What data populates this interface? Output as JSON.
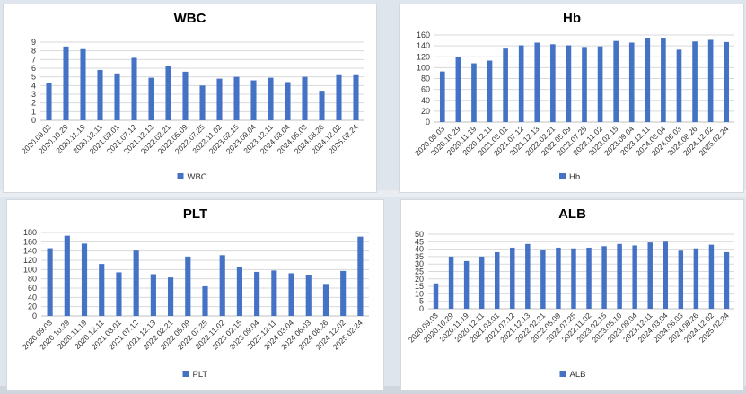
{
  "colors": {
    "bar": "#4472c4"
  },
  "chart_data": [
    {
      "type": "bar",
      "title": "WBC",
      "legend": "WBC",
      "legend_position": "bottom",
      "ylim": [
        0,
        9
      ],
      "ystep": 1,
      "categories": [
        "2020.09.03",
        "2020.10.29",
        "2020.11.19",
        "2020.12.11",
        "2021.03.01",
        "2021.07.12",
        "2021.12.13",
        "2022.02.21",
        "2022.05.09",
        "2022.07.25",
        "2022.11.02",
        "2023.02.15",
        "2023.09.04",
        "2023.12.11",
        "2024.03.04",
        "2024.06.03",
        "2024.08.26",
        "2024.12.02",
        "2025.02.24"
      ],
      "values": [
        4.3,
        8.5,
        8.2,
        5.8,
        5.4,
        7.2,
        4.9,
        6.3,
        5.6,
        4.0,
        4.8,
        5.0,
        4.6,
        4.9,
        4.4,
        5.0,
        3.4,
        5.2,
        5.2
      ]
    },
    {
      "type": "bar",
      "title": "Hb",
      "legend": "Hb",
      "legend_position": "bottom",
      "ylim": [
        0,
        160
      ],
      "ystep": 20,
      "categories": [
        "2020.09.03",
        "2020.10.29",
        "2020.11.19",
        "2020.12.11",
        "2021.03.01",
        "2021.07.12",
        "2021.12.13",
        "2022.02.21",
        "2022.05.09",
        "2022.07.25",
        "2022.11.02",
        "2023.02.15",
        "2023.09.04",
        "2023.12.11",
        "2024.03.04",
        "2024.06.03",
        "2024.08.26",
        "2024.12.02",
        "2025.02.24"
      ],
      "values": [
        93,
        120,
        108,
        113,
        135,
        141,
        146,
        143,
        141,
        138,
        139,
        149,
        146,
        155,
        155,
        133,
        148,
        151,
        147
      ]
    },
    {
      "type": "bar",
      "title": "PLT",
      "legend": "PLT",
      "legend_position": "bottom",
      "ylim": [
        0,
        180
      ],
      "ystep": 20,
      "categories": [
        "2020.09.03",
        "2020.10.29",
        "2020.11.19",
        "2020.12.11",
        "2021.03.01",
        "2021.07.12",
        "2021.12.13",
        "2022.02.21",
        "2022.05.09",
        "2022.07.25",
        "2022.11.02",
        "2023.02.15",
        "2023.09.04",
        "2023.12.11",
        "2024.03.04",
        "2024.06.03",
        "2024.08.26",
        "2024.12.02",
        "2025.02.24"
      ],
      "values": [
        146,
        173,
        156,
        112,
        94,
        141,
        90,
        83,
        128,
        64,
        131,
        106,
        95,
        98,
        92,
        89,
        69,
        97,
        171
      ]
    },
    {
      "type": "bar",
      "title": "ALB",
      "legend": "ALB",
      "legend_position": "bottom",
      "ylim": [
        0,
        50
      ],
      "ystep": 5,
      "categories": [
        "2020.09.03",
        "2020.10.29",
        "2020.11.19",
        "2020.12.11",
        "2021.03.01",
        "2021.07.12",
        "2021.12.13",
        "2022.02.21",
        "2022.05.09",
        "2022.07.25",
        "2022.11.02",
        "2023.02.15",
        "2023.05.10",
        "2023.09.04",
        "2023.12.11",
        "2024.03.04",
        "2024.06.03",
        "2024.08.26",
        "2024.12.02",
        "2025.02.24"
      ],
      "values": [
        17,
        35,
        32,
        35,
        38,
        41,
        43.5,
        39.5,
        41,
        40.5,
        41,
        42,
        43.5,
        42.5,
        44.5,
        45,
        39,
        40.5,
        43,
        38
      ]
    }
  ]
}
